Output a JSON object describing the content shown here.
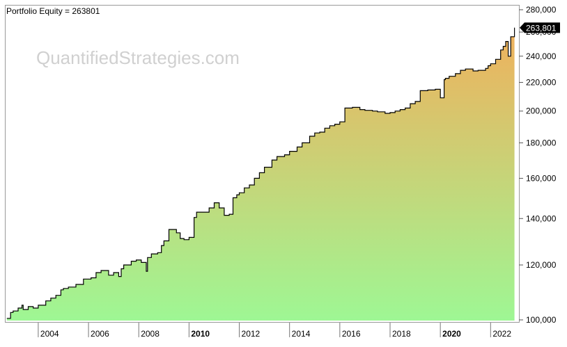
{
  "header": {
    "title": "Portfolio Equity = 263801",
    "watermark": "QuantifiedStrategies.com",
    "last_value_label": "263,801"
  },
  "colors": {
    "fill_top": "#f0b05c",
    "fill_bottom": "#9ef794",
    "line": "#000000",
    "badge_bg": "#000000",
    "badge_text": "#ffffff",
    "watermark": "#d0d0d0",
    "frame": "#999999"
  },
  "chart_data": {
    "type": "area",
    "title": "Portfolio Equity = 263801",
    "scale": "log",
    "ylim": [
      100000,
      280000
    ],
    "xlim": [
      2002.7,
      2023.1
    ],
    "grid": false,
    "y_ticks": [
      100000,
      120000,
      140000,
      160000,
      180000,
      200000,
      220000,
      240000,
      260000,
      280000
    ],
    "y_tick_labels": [
      "100,000",
      "120,000",
      "140,000",
      "160,000",
      "180,000",
      "200,000",
      "220,000",
      "240,000",
      "260,000",
      "280,000"
    ],
    "x_ticks": [
      2004,
      2006,
      2008,
      2010,
      2012,
      2014,
      2016,
      2018,
      2020,
      2022
    ],
    "x_tick_labels": [
      "2004",
      "2006",
      "2008",
      "2010",
      "2012",
      "2014",
      "2016",
      "2018",
      "2020",
      "2022"
    ],
    "x_tick_bold": [
      false,
      false,
      false,
      true,
      false,
      false,
      false,
      false,
      true,
      false
    ],
    "series": [
      {
        "x": [
          2002.75,
          2002.9,
          2003.0,
          2003.2,
          2003.35,
          2003.4,
          2003.6,
          2003.8,
          2004.0,
          2004.3,
          2004.5,
          2004.7,
          2004.9,
          2005.0,
          2005.2,
          2005.5,
          2005.8,
          2006.1,
          2006.3,
          2006.5,
          2006.8,
          2007.0,
          2007.2,
          2007.3,
          2007.4,
          2007.7,
          2007.9,
          2008.1,
          2008.3,
          2008.35,
          2008.5,
          2008.75,
          2008.9,
          2009.0,
          2009.2,
          2009.5,
          2009.65,
          2009.8,
          2010.0,
          2010.2,
          2010.3,
          2010.5,
          2010.8,
          2011.0,
          2011.2,
          2011.4,
          2011.6,
          2011.75,
          2011.9,
          2012.0,
          2012.2,
          2012.4,
          2012.6,
          2012.8,
          2013.0,
          2013.3,
          2013.5,
          2013.8,
          2014.0,
          2014.3,
          2014.5,
          2014.8,
          2015.0,
          2015.2,
          2015.4,
          2015.6,
          2015.8,
          2016.0,
          2016.2,
          2016.5,
          2016.8,
          2017.0,
          2017.3,
          2017.5,
          2017.8,
          2018.0,
          2018.2,
          2018.4,
          2018.6,
          2018.8,
          2019.0,
          2019.2,
          2019.5,
          2019.8,
          2020.0,
          2020.15,
          2020.2,
          2020.35,
          2020.6,
          2020.8,
          2021.0,
          2021.3,
          2021.5,
          2021.8,
          2021.9,
          2022.0,
          2022.2,
          2022.4,
          2022.5,
          2022.6,
          2022.7,
          2022.8,
          2022.95
        ],
        "values": [
          100500,
          102500,
          103000,
          104000,
          105000,
          103500,
          104500,
          104000,
          105000,
          106500,
          107500,
          108500,
          110500,
          111000,
          111500,
          112500,
          114500,
          115000,
          117000,
          117800,
          116000,
          117000,
          115500,
          118500,
          120000,
          121500,
          122000,
          121000,
          117500,
          123000,
          124500,
          125000,
          128000,
          130000,
          135000,
          133500,
          131000,
          130500,
          131500,
          140500,
          143000,
          143000,
          145000,
          147500,
          145000,
          141500,
          142000,
          150000,
          151500,
          152500,
          155000,
          156500,
          160000,
          163000,
          166000,
          170000,
          172000,
          173000,
          175000,
          177500,
          180000,
          184000,
          186000,
          186500,
          189000,
          190500,
          191500,
          193000,
          202000,
          202500,
          201000,
          200500,
          200000,
          199500,
          198500,
          199000,
          200000,
          201000,
          202000,
          205000,
          206500,
          214000,
          214500,
          215000,
          209000,
          222000,
          223000,
          224500,
          226500,
          229000,
          230000,
          228500,
          229000,
          230500,
          232500,
          234000,
          237500,
          245000,
          248000,
          252000,
          240000,
          256000,
          263801
        ]
      }
    ]
  }
}
